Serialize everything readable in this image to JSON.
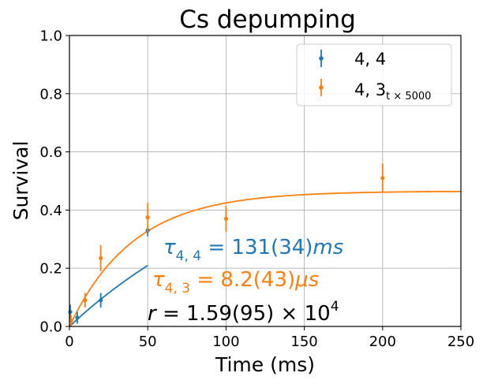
{
  "chart_data": {
    "type": "scatter",
    "title": "Cs depumping",
    "xlabel": "Time (ms)",
    "ylabel": "Survival",
    "xlim": [
      0,
      250
    ],
    "ylim": [
      0,
      1.0
    ],
    "xticks": [
      0,
      50,
      100,
      150,
      200,
      250
    ],
    "yticks": [
      0.0,
      0.2,
      0.4,
      0.6,
      0.8,
      1.0
    ],
    "xtick_labels": [
      "0",
      "50",
      "100",
      "150",
      "200",
      "250"
    ],
    "ytick_labels": [
      "0.0",
      "0.2",
      "0.4",
      "0.6",
      "0.8",
      "1.0"
    ],
    "grid": true,
    "legend_position": "top-right",
    "series": [
      {
        "name": "4, 4",
        "color": "#1f77b4",
        "points": [
          {
            "x": 0.5,
            "y": 0.05,
            "err": 0.025
          },
          {
            "x": 5,
            "y": 0.03,
            "err": 0.02
          },
          {
            "x": 20,
            "y": 0.09,
            "err": 0.025
          },
          {
            "x": 50,
            "y": 0.33,
            "err": 0.02
          }
        ],
        "fit": {
          "amplitude": 0.66,
          "tau": 131,
          "x_range": [
            0,
            50
          ]
        }
      },
      {
        "name": "4, 3",
        "name_subscript": "t × 5000",
        "color": "#ff7f0e",
        "points": [
          {
            "x": 1,
            "y": 0.02,
            "err": 0.02
          },
          {
            "x": 10,
            "y": 0.09,
            "err": 0.025
          },
          {
            "x": 20,
            "y": 0.235,
            "err": 0.045
          },
          {
            "x": 50,
            "y": 0.375,
            "err": 0.05
          },
          {
            "x": 100,
            "y": 0.37,
            "err": 0.045
          },
          {
            "x": 200,
            "y": 0.51,
            "err": 0.05
          }
        ],
        "fit": {
          "amplitude": 0.465,
          "tau": 41,
          "x_range": [
            0,
            250
          ]
        }
      }
    ],
    "annotations": [
      {
        "id": "tau44",
        "color": "#1f77b4",
        "parts": [
          "τ",
          "4, 4",
          " = 131(34)",
          "ms"
        ]
      },
      {
        "id": "tau43",
        "color": "#ff7f0e",
        "parts": [
          "τ",
          "4, 3",
          " = 8.2(43)",
          "μs"
        ]
      },
      {
        "id": "r",
        "color": "#000000",
        "parts": [
          "r",
          " = 1.59(95) × 10",
          "4"
        ]
      }
    ]
  }
}
